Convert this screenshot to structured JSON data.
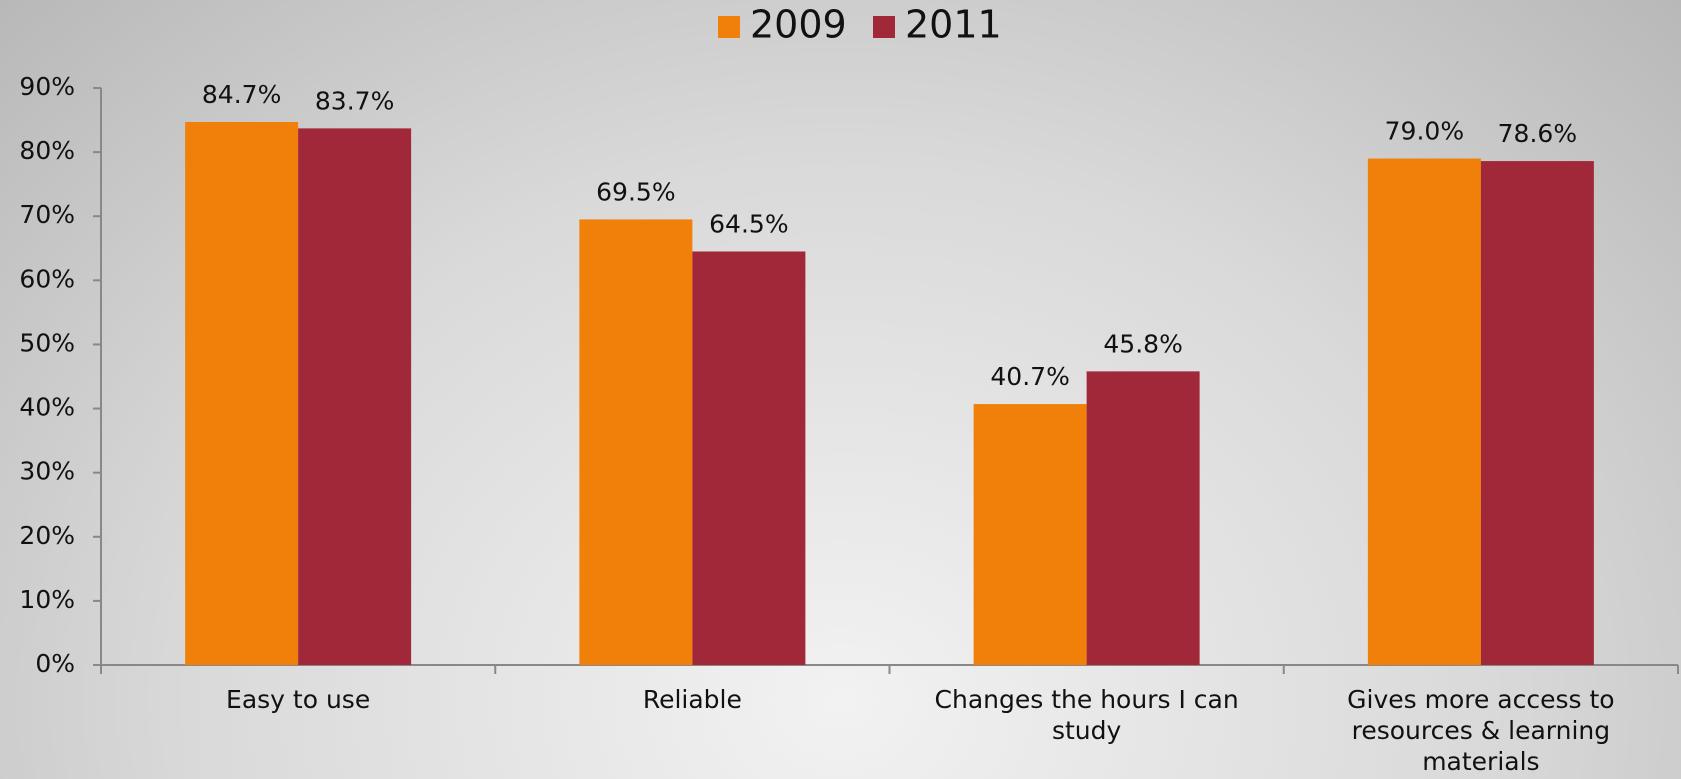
{
  "chart_data": {
    "type": "bar",
    "categories": [
      "Easy to use",
      "Reliable",
      "Changes the hours I can study",
      "Gives more access to resources & learning materials"
    ],
    "series": [
      {
        "name": "2009",
        "color": "#f0800a",
        "values": [
          84.7,
          69.5,
          40.7,
          79.0
        ],
        "value_labels": [
          "84.7%",
          "69.5%",
          "40.7%",
          "79.0%"
        ]
      },
      {
        "name": "2011",
        "color": "#a02838",
        "values": [
          83.7,
          64.5,
          45.8,
          78.6
        ],
        "value_labels": [
          "83.7%",
          "64.5%",
          "45.8%",
          "78.6%"
        ]
      }
    ],
    "ylim": [
      0,
      90
    ],
    "yticks": [
      {
        "value": 0,
        "label": "0%"
      },
      {
        "value": 10,
        "label": "10%"
      },
      {
        "value": 20,
        "label": "20%"
      },
      {
        "value": 30,
        "label": "30%"
      },
      {
        "value": 40,
        "label": "40%"
      },
      {
        "value": 50,
        "label": "50%"
      },
      {
        "value": 60,
        "label": "60%"
      },
      {
        "value": 70,
        "label": "70%"
      },
      {
        "value": 80,
        "label": "80%"
      },
      {
        "value": 90,
        "label": "90%"
      }
    ],
    "legend": "top"
  }
}
